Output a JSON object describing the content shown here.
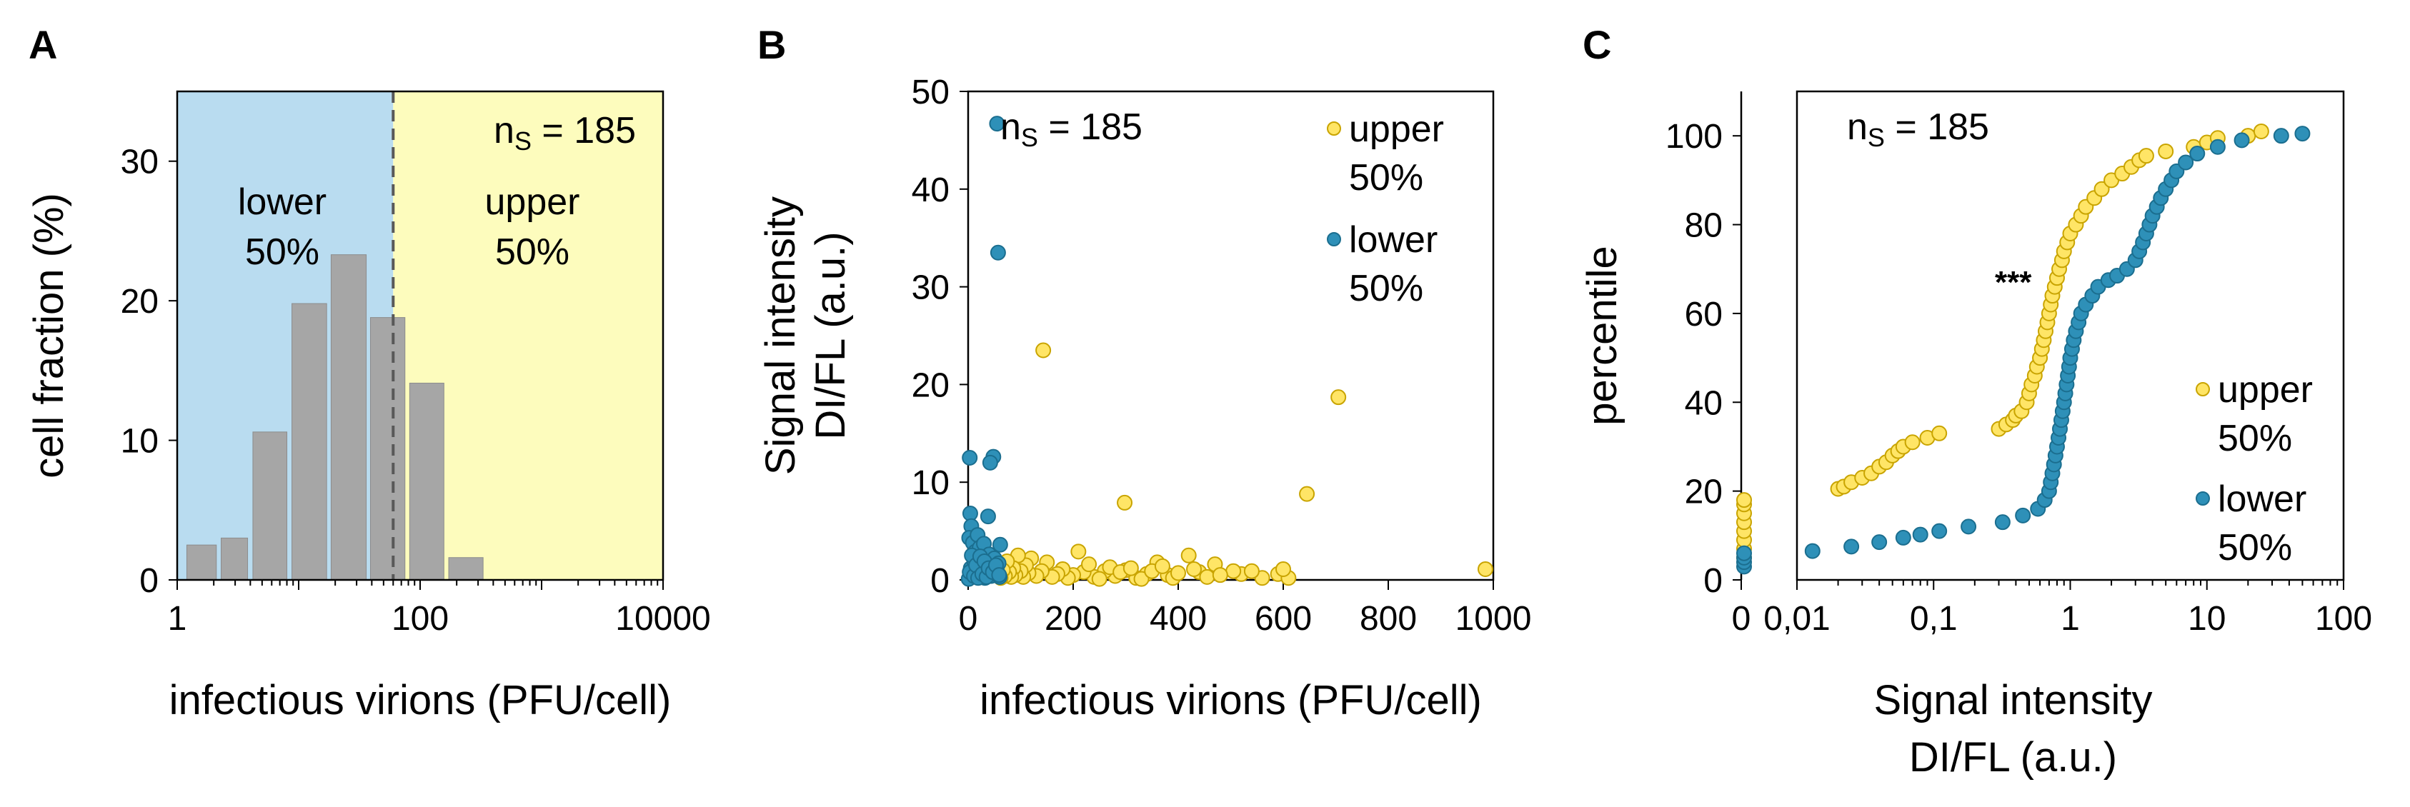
{
  "chart_data": [
    {
      "panel": "A",
      "type": "bar",
      "xscale": "log",
      "xlabel": "infectious virions (PFU/cell)",
      "ylabel": "cell fraction (%)",
      "xlim": [
        1,
        10000
      ],
      "ylim": [
        0,
        35
      ],
      "x_ticks": [
        "1",
        "100",
        "10000"
      ],
      "y_ticks": [
        "0",
        "10",
        "20",
        "30"
      ],
      "bins": [
        {
          "from": 1.2,
          "to": 2.1,
          "value": 2.5
        },
        {
          "from": 2.3,
          "to": 3.8,
          "value": 3.0
        },
        {
          "from": 4.2,
          "to": 8.0,
          "value": 10.6
        },
        {
          "from": 8.8,
          "to": 17.0,
          "value": 19.8
        },
        {
          "from": 18.5,
          "to": 36.0,
          "value": 23.3
        },
        {
          "from": 39.0,
          "to": 75.0,
          "value": 18.8
        },
        {
          "from": 82.0,
          "to": 157.0,
          "value": 14.1
        },
        {
          "from": 172.0,
          "to": 330.0,
          "value": 1.6
        }
      ],
      "split_at": 60,
      "regions": [
        {
          "label_line1": "lower",
          "label_line2": "50%",
          "color": "#b9dcf0"
        },
        {
          "label_line1": "upper",
          "label_line2": "50%",
          "color": "#fdfcbd"
        }
      ],
      "annotation": {
        "n_prefix": "n",
        "n_sub": "S",
        "n_suffix": " = 185"
      },
      "colors": {
        "bar": "#a6a6a6",
        "bar_edge": "#8c8c8c",
        "split_line": "#595959"
      }
    },
    {
      "panel": "B",
      "type": "scatter",
      "xlabel": "infectious virions (PFU/cell)",
      "ylabel_line1": "Signal intensity",
      "ylabel_line2": "DI/FL (a.u.)",
      "xlim": [
        0,
        1000
      ],
      "ylim": [
        0,
        50
      ],
      "x_ticks": [
        "0",
        "200",
        "400",
        "600",
        "800",
        "1000"
      ],
      "y_ticks": [
        "0",
        "10",
        "20",
        "30",
        "40",
        "50"
      ],
      "annotation": {
        "n_prefix": "n",
        "n_sub": "S",
        "n_suffix": " = 185"
      },
      "series": [
        {
          "name_line1": "upper",
          "name_line2": "50%",
          "color": "#ffe566",
          "edge": "#c9a400",
          "points": [
            [
              143,
              23.5
            ],
            [
              705,
              18.7
            ],
            [
              645,
              8.8
            ],
            [
              298,
              7.9
            ],
            [
              985,
              1.1
            ],
            [
              470,
              1.6
            ],
            [
              520,
              0.6
            ],
            [
              560,
              0.2
            ],
            [
              590,
              0.6
            ],
            [
              610,
              0.2
            ],
            [
              505,
              0.9
            ],
            [
              420,
              2.5
            ],
            [
              440,
              0.8
            ],
            [
              455,
              0.3
            ],
            [
              380,
              0.5
            ],
            [
              360,
              1.8
            ],
            [
              340,
              0.6
            ],
            [
              320,
              0.2
            ],
            [
              300,
              1.0
            ],
            [
              280,
              0.4
            ],
            [
              260,
              0.9
            ],
            [
              240,
              0.3
            ],
            [
              220,
              0.8
            ],
            [
              210,
              2.9
            ],
            [
              200,
              0.5
            ],
            [
              190,
              0.2
            ],
            [
              180,
              1.1
            ],
            [
              170,
              0.6
            ],
            [
              160,
              0.3
            ],
            [
              150,
              1.8
            ],
            [
              140,
              0.9
            ],
            [
              130,
              0.4
            ],
            [
              120,
              2.2
            ],
            [
              115,
              0.7
            ],
            [
              110,
              1.5
            ],
            [
              105,
              0.3
            ],
            [
              100,
              0.9
            ],
            [
              95,
              2.5
            ],
            [
              90,
              0.5
            ],
            [
              86,
              1.2
            ],
            [
              82,
              0.3
            ],
            [
              78,
              0.8
            ],
            [
              74,
              1.9
            ],
            [
              70,
              0.4
            ],
            [
              66,
              1.0
            ],
            [
              62,
              0.2
            ],
            [
              230,
              1.6
            ],
            [
              250,
              0.1
            ],
            [
              270,
              1.3
            ],
            [
              290,
              0.8
            ],
            [
              310,
              1.2
            ],
            [
              330,
              0.1
            ],
            [
              350,
              0.9
            ],
            [
              370,
              1.4
            ],
            [
              390,
              0.2
            ],
            [
              400,
              0.7
            ],
            [
              430,
              1.1
            ],
            [
              480,
              0.5
            ],
            [
              540,
              0.9
            ],
            [
              600,
              1.1
            ]
          ]
        },
        {
          "name_line1": "lower",
          "name_line2": "50%",
          "color": "#2e90b8",
          "edge": "#1b6e8f",
          "points": [
            [
              55,
              46.7
            ],
            [
              57,
              33.5
            ],
            [
              3,
              12.5
            ],
            [
              48,
              12.6
            ],
            [
              42,
              12.0
            ],
            [
              4,
              6.8
            ],
            [
              38,
              6.5
            ],
            [
              6,
              5.5
            ],
            [
              2,
              4.3
            ],
            [
              9,
              3.8
            ],
            [
              14,
              2.9
            ],
            [
              18,
              4.6
            ],
            [
              22,
              3.3
            ],
            [
              26,
              2.1
            ],
            [
              30,
              3.7
            ],
            [
              34,
              1.6
            ],
            [
              40,
              2.6
            ],
            [
              45,
              1.4
            ],
            [
              50,
              2.2
            ],
            [
              55,
              0.9
            ],
            [
              58,
              1.7
            ],
            [
              61,
              3.6
            ],
            [
              5,
              1.2
            ],
            [
              8,
              0.6
            ],
            [
              12,
              1.8
            ],
            [
              16,
              0.3
            ],
            [
              20,
              1.1
            ],
            [
              24,
              0.5
            ],
            [
              28,
              1.4
            ],
            [
              32,
              0.2
            ],
            [
              36,
              0.9
            ],
            [
              44,
              0.4
            ],
            [
              52,
              0.7
            ],
            [
              60,
              0.3
            ],
            [
              1,
              0.1
            ],
            [
              3,
              0.8
            ],
            [
              7,
              2.5
            ],
            [
              11,
              0.4
            ],
            [
              15,
              1.5
            ],
            [
              19,
              0.2
            ],
            [
              23,
              2.4
            ],
            [
              27,
              0.6
            ],
            [
              31,
              1.9
            ],
            [
              35,
              0.3
            ],
            [
              39,
              1.2
            ],
            [
              47,
              0.8
            ],
            [
              53,
              1.5
            ],
            [
              59,
              0.5
            ]
          ]
        }
      ]
    },
    {
      "panel": "C",
      "type": "scatter",
      "subtype": "percentile-plot",
      "xscale": "log",
      "xlabel_line1": "Signal intensity",
      "xlabel_line2": "DI/FL (a.u.)",
      "ylabel": "percentile",
      "xlim": [
        0.01,
        100
      ],
      "ylim": [
        0,
        110
      ],
      "x_ticks": [
        "0",
        "0,01",
        "0,1",
        "1",
        "10",
        "100"
      ],
      "y_ticks": [
        "0",
        "20",
        "40",
        "60",
        "80",
        "100"
      ],
      "annotation": {
        "n_prefix": "n",
        "n_sub": "S",
        "n_suffix": " = 185"
      },
      "significance": "***",
      "series": [
        {
          "name_line1": "upper",
          "name_line2": "50%",
          "color": "#ffe566",
          "edge": "#c9a400",
          "zero_values": [
            5,
            7,
            9,
            11,
            13,
            15,
            17,
            18
          ],
          "points": [
            [
              0.02,
              20.5
            ],
            [
              0.022,
              21
            ],
            [
              0.025,
              22
            ],
            [
              0.03,
              23
            ],
            [
              0.035,
              24
            ],
            [
              0.04,
              25.5
            ],
            [
              0.045,
              26.5
            ],
            [
              0.05,
              28
            ],
            [
              0.055,
              29
            ],
            [
              0.06,
              30
            ],
            [
              0.07,
              31
            ],
            [
              0.09,
              32
            ],
            [
              0.11,
              33
            ],
            [
              0.3,
              34
            ],
            [
              0.34,
              35
            ],
            [
              0.38,
              36
            ],
            [
              0.4,
              37
            ],
            [
              0.44,
              38
            ],
            [
              0.48,
              40
            ],
            [
              0.5,
              42
            ],
            [
              0.52,
              44
            ],
            [
              0.55,
              46
            ],
            [
              0.57,
              48
            ],
            [
              0.6,
              50
            ],
            [
              0.62,
              52
            ],
            [
              0.64,
              54
            ],
            [
              0.66,
              56
            ],
            [
              0.68,
              58
            ],
            [
              0.7,
              60
            ],
            [
              0.72,
              62
            ],
            [
              0.74,
              64
            ],
            [
              0.77,
              66
            ],
            [
              0.8,
              68
            ],
            [
              0.83,
              70
            ],
            [
              0.87,
              72
            ],
            [
              0.9,
              74
            ],
            [
              0.95,
              76
            ],
            [
              1.0,
              78
            ],
            [
              1.1,
              80
            ],
            [
              1.2,
              82
            ],
            [
              1.3,
              84
            ],
            [
              1.5,
              86
            ],
            [
              1.7,
              88
            ],
            [
              2.0,
              90
            ],
            [
              2.4,
              91.5
            ],
            [
              2.8,
              93
            ],
            [
              3.2,
              94.5
            ],
            [
              3.6,
              95.5
            ],
            [
              5.0,
              96.5
            ],
            [
              8.0,
              97.5
            ],
            [
              10.0,
              98.5
            ],
            [
              12.0,
              99.5
            ],
            [
              20.0,
              100
            ],
            [
              25.0,
              101
            ]
          ]
        },
        {
          "name_line1": "lower",
          "name_line2": "50%",
          "color": "#2e90b8",
          "edge": "#1b6e8f",
          "zero_values": [
            3,
            4,
            5,
            6
          ],
          "points": [
            [
              0.013,
              6.5
            ],
            [
              0.025,
              7.5
            ],
            [
              0.04,
              8.5
            ],
            [
              0.06,
              9.5
            ],
            [
              0.08,
              10.2
            ],
            [
              0.11,
              11
            ],
            [
              0.18,
              12
            ],
            [
              0.32,
              13
            ],
            [
              0.45,
              14.5
            ],
            [
              0.58,
              16
            ],
            [
              0.65,
              18
            ],
            [
              0.7,
              20
            ],
            [
              0.72,
              22
            ],
            [
              0.74,
              24
            ],
            [
              0.76,
              26
            ],
            [
              0.78,
              28
            ],
            [
              0.8,
              30
            ],
            [
              0.82,
              32
            ],
            [
              0.84,
              34
            ],
            [
              0.86,
              36
            ],
            [
              0.88,
              38
            ],
            [
              0.9,
              40
            ],
            [
              0.92,
              42
            ],
            [
              0.94,
              44
            ],
            [
              0.96,
              46
            ],
            [
              0.98,
              48
            ],
            [
              1.0,
              50
            ],
            [
              1.03,
              52
            ],
            [
              1.06,
              54
            ],
            [
              1.1,
              56
            ],
            [
              1.15,
              58
            ],
            [
              1.2,
              60
            ],
            [
              1.3,
              62
            ],
            [
              1.45,
              64
            ],
            [
              1.6,
              66
            ],
            [
              1.9,
              67.5
            ],
            [
              2.2,
              68.5
            ],
            [
              2.6,
              70
            ],
            [
              3.0,
              72
            ],
            [
              3.2,
              74
            ],
            [
              3.4,
              76
            ],
            [
              3.6,
              78
            ],
            [
              3.8,
              80
            ],
            [
              4.0,
              82
            ],
            [
              4.3,
              84
            ],
            [
              4.6,
              86
            ],
            [
              5.0,
              88
            ],
            [
              5.5,
              90
            ],
            [
              6.0,
              92
            ],
            [
              7.0,
              94
            ],
            [
              8.5,
              96
            ],
            [
              12.0,
              97.5
            ],
            [
              18.0,
              99
            ],
            [
              35.0,
              100
            ],
            [
              50.0,
              100.5
            ]
          ]
        }
      ]
    }
  ],
  "panels": {
    "A": {
      "letter": "A"
    },
    "B": {
      "letter": "B"
    },
    "C": {
      "letter": "C"
    }
  }
}
